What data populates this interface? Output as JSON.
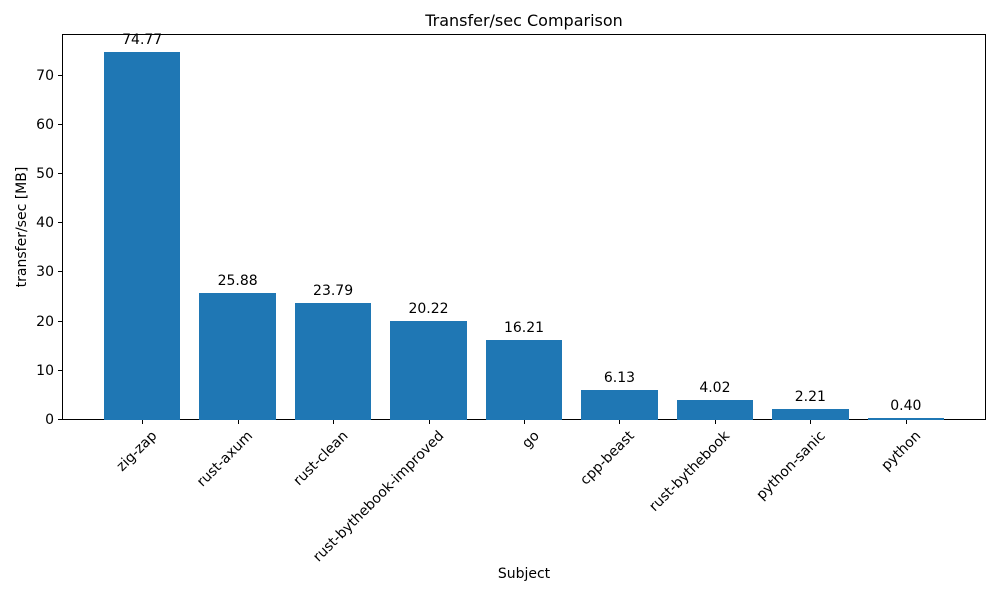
{
  "figure": {
    "background": "#ffffff"
  },
  "chart_data": {
    "type": "bar",
    "title": "Transfer/sec Comparison",
    "xlabel": "Subject",
    "ylabel": "transfer/sec [MB]",
    "categories": [
      "zig-zap",
      "rust-axum",
      "rust-clean",
      "rust-bythebook-improved",
      "go",
      "cpp-beast",
      "rust-bythebook",
      "python-sanic",
      "python"
    ],
    "values": [
      74.77,
      25.88,
      23.79,
      20.22,
      16.21,
      6.13,
      4.02,
      2.21,
      0.4
    ],
    "value_labels": [
      "74.77",
      "25.88",
      "23.79",
      "20.22",
      "16.21",
      "6.13",
      "4.02",
      "2.21",
      "0.40"
    ],
    "ylim": [
      0,
      78.5
    ],
    "yticks": [
      0,
      10,
      20,
      30,
      40,
      50,
      60,
      70
    ],
    "bar_color": "#1f77b4",
    "text_color": "#000000",
    "grid": false,
    "x_tick_rotation_deg": 45
  }
}
